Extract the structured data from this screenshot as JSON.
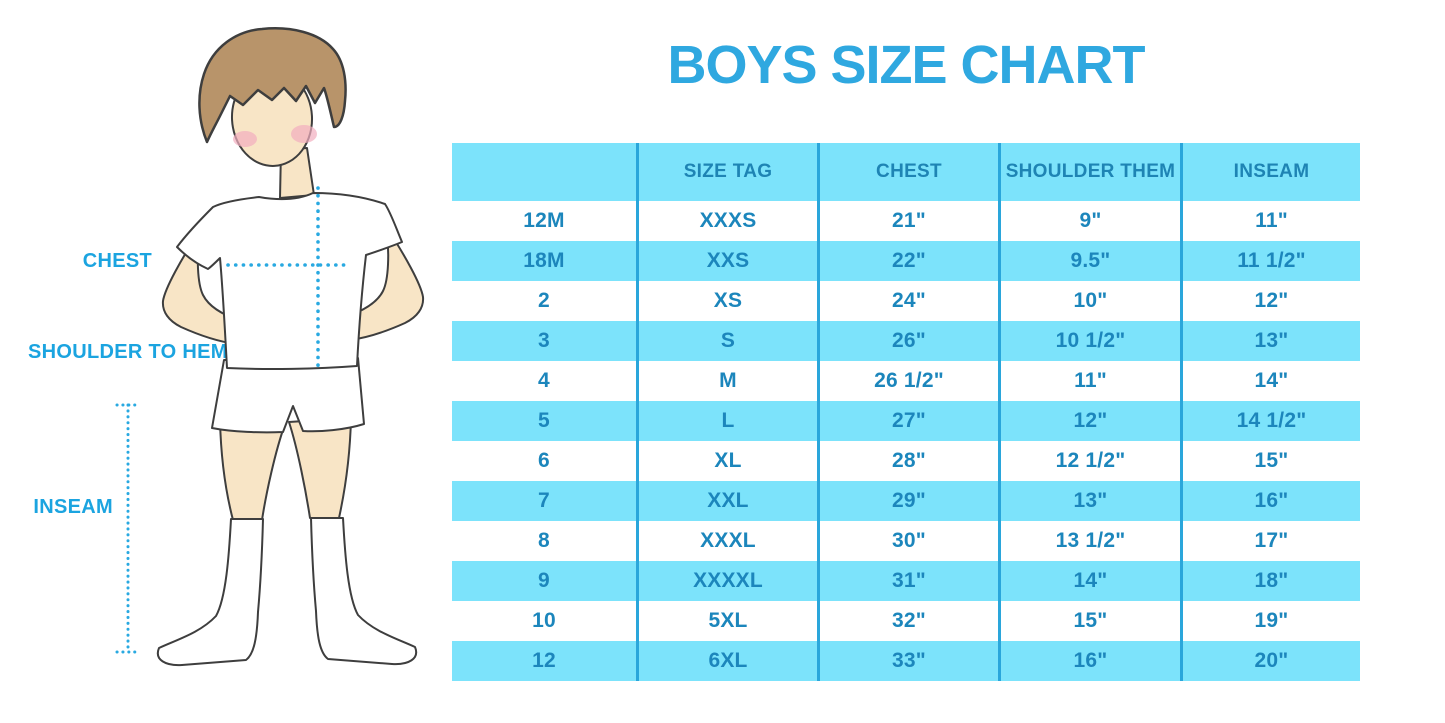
{
  "title": "BOYS SIZE CHART",
  "figure_labels": {
    "chest": "CHEST",
    "shoulder_to_hem": "SHOULDER TO HEM",
    "inseam": "INSEAM"
  },
  "chart_data": {
    "type": "table",
    "title": "BOYS SIZE CHART",
    "columns": [
      "",
      "SIZE TAG",
      "CHEST",
      "SHOULDER THEM",
      "INSEAM"
    ],
    "rows": [
      [
        "12M",
        "XXXS",
        "21\"",
        "9\"",
        "11\""
      ],
      [
        "18M",
        "XXS",
        "22\"",
        "9.5\"",
        "11 1/2\""
      ],
      [
        "2",
        "XS",
        "24\"",
        "10\"",
        "12\""
      ],
      [
        "3",
        "S",
        "26\"",
        "10 1/2\"",
        "13\""
      ],
      [
        "4",
        "M",
        "26 1/2\"",
        "11\"",
        "14\""
      ],
      [
        "5",
        "L",
        "27\"",
        "12\"",
        "14 1/2\""
      ],
      [
        "6",
        "XL",
        "28\"",
        "12 1/2\"",
        "15\""
      ],
      [
        "7",
        "XXL",
        "29\"",
        "13\"",
        "16\""
      ],
      [
        "8",
        "XXXL",
        "30\"",
        "13 1/2\"",
        "17\""
      ],
      [
        "9",
        "XXXXL",
        "31\"",
        "14\"",
        "18\""
      ],
      [
        "10",
        "5XL",
        "32\"",
        "15\"",
        "19\""
      ],
      [
        "12",
        "6XL",
        "33\"",
        "16\"",
        "20\""
      ]
    ],
    "layout": {
      "banding": "alternating rows, first data row white",
      "band_color": "#7CE3FB",
      "divider_color": "#2AA6DB"
    }
  },
  "colors": {
    "title": "#2FA8E0",
    "label": "#1BA4E0",
    "table-text": "#1C86BC",
    "band": "#7CE3FB",
    "divider": "#2AA6DB",
    "dotted": "#29A9E1",
    "skin": "#F8E5C6",
    "hair": "#B8946A",
    "blush": "#F2AEBF",
    "outline": "#3E3E3E"
  }
}
